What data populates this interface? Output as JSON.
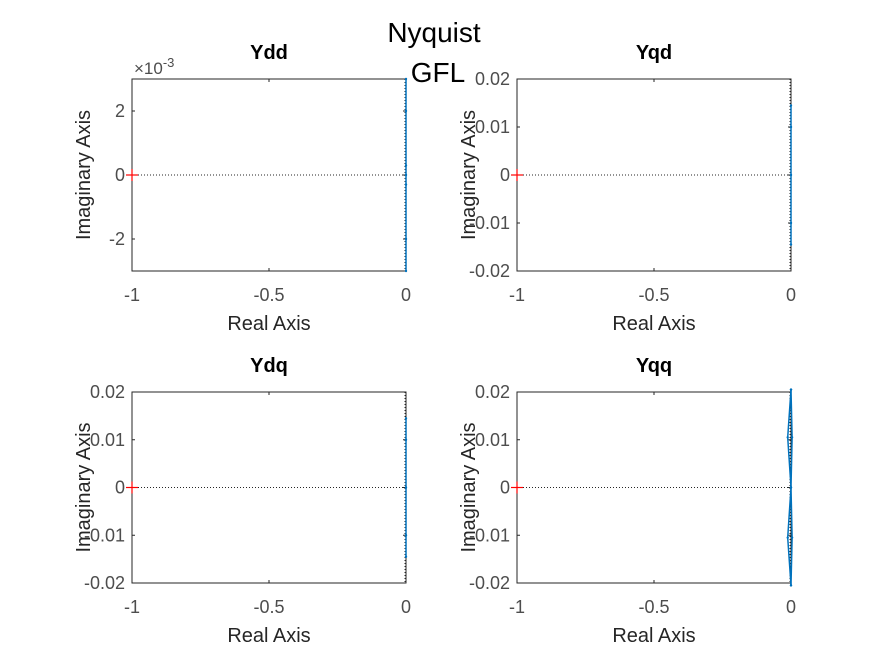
{
  "figure": {
    "title_lines": [
      "Nyquist",
      "GFL"
    ],
    "colors": {
      "curve": "#0072bd",
      "marker": "#ff0000",
      "axes": "#262626",
      "zero_line": "#262626"
    }
  },
  "chart_data": [
    {
      "type": "line",
      "title": "Ydd",
      "xlabel": "Real Axis",
      "ylabel": "Imaginary Axis",
      "xlim": [
        -1,
        0
      ],
      "ylim": [
        -0.003,
        0.003
      ],
      "xticks": [
        -1,
        -0.5,
        0
      ],
      "xtick_labels": [
        "-1",
        "-0.5",
        "0"
      ],
      "yticks": [
        -0.002,
        0,
        0.002
      ],
      "ytick_labels": [
        "-2",
        "0",
        "2"
      ],
      "exponent": {
        "base": "×10",
        "power": "-3"
      },
      "grid": false,
      "marker": {
        "x": -1,
        "y": 0,
        "label": "+"
      },
      "series": [
        {
          "x": [
            0,
            0,
            0,
            0,
            0,
            0,
            0
          ],
          "y": [
            -0.003,
            -0.002,
            -0.0003,
            0,
            0.0003,
            0.002,
            0.003
          ]
        }
      ]
    },
    {
      "type": "line",
      "title": "Yqd",
      "xlabel": "Real Axis",
      "ylabel": "Imaginary Axis",
      "xlim": [
        -1,
        0
      ],
      "ylim": [
        -0.02,
        0.02
      ],
      "xticks": [
        -1,
        -0.5,
        0
      ],
      "xtick_labels": [
        "-1",
        "-0.5",
        "0"
      ],
      "yticks": [
        -0.02,
        -0.01,
        0,
        0.01,
        0.02
      ],
      "ytick_labels": [
        "-0.02",
        "-0.01",
        "0",
        "0.01",
        "0.02"
      ],
      "grid": false,
      "marker": {
        "x": -1,
        "y": 0,
        "label": "+"
      },
      "series": [
        {
          "x": [
            0,
            0,
            0,
            0,
            0
          ],
          "y": [
            -0.0145,
            -0.01,
            0,
            0.01,
            0.0145
          ]
        }
      ]
    },
    {
      "type": "line",
      "title": "Ydq",
      "xlabel": "Real Axis",
      "ylabel": "Imaginary Axis",
      "xlim": [
        -1,
        0
      ],
      "ylim": [
        -0.02,
        0.02
      ],
      "xticks": [
        -1,
        -0.5,
        0
      ],
      "xtick_labels": [
        "-1",
        "-0.5",
        "0"
      ],
      "yticks": [
        -0.02,
        -0.01,
        0,
        0.01,
        0.02
      ],
      "ytick_labels": [
        "-0.02",
        "-0.01",
        "0",
        "0.01",
        "0.02"
      ],
      "grid": false,
      "marker": {
        "x": -1,
        "y": 0,
        "label": "+"
      },
      "series": [
        {
          "x": [
            0,
            0,
            0,
            0,
            0
          ],
          "y": [
            -0.0145,
            -0.01,
            0,
            0.01,
            0.0145
          ]
        }
      ]
    },
    {
      "type": "line",
      "title": "Yqq",
      "xlabel": "Real Axis",
      "ylabel": "Imaginary Axis",
      "xlim": [
        -1,
        0
      ],
      "ylim": [
        -0.02,
        0.02
      ],
      "xticks": [
        -1,
        -0.5,
        0
      ],
      "xtick_labels": [
        "-1",
        "-0.5",
        "0"
      ],
      "yticks": [
        -0.02,
        -0.01,
        0,
        0.01,
        0.02
      ],
      "ytick_labels": [
        "-0.02",
        "-0.01",
        "0",
        "0.01",
        "0.02"
      ],
      "grid": false,
      "marker": {
        "x": -1,
        "y": 0,
        "label": "+"
      },
      "series": [
        {
          "x": [
            0,
            -0.012,
            0,
            -0.012,
            0
          ],
          "y": [
            -0.0205,
            -0.0105,
            0,
            0.0105,
            0.0205
          ]
        },
        {
          "x": [
            0,
            0.004,
            0,
            0.004,
            0
          ],
          "y": [
            -0.0205,
            -0.0105,
            0,
            0.0105,
            0.0205
          ]
        }
      ]
    }
  ]
}
